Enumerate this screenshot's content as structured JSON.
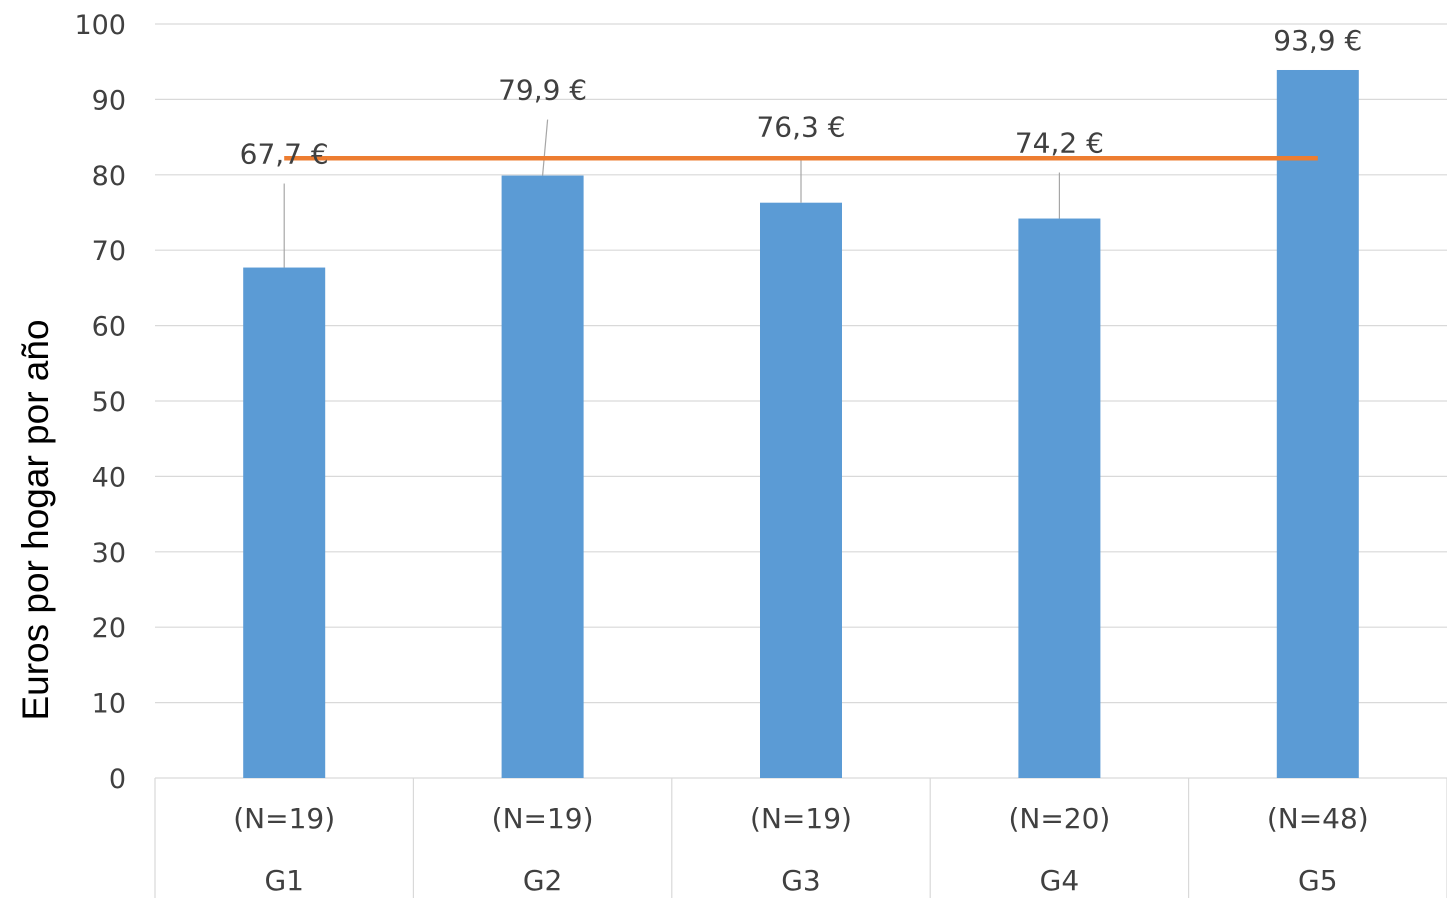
{
  "chart_data": {
    "type": "bar",
    "title": "",
    "xlabel": "",
    "ylabel": "Euros por hogar por año",
    "ylim": [
      0,
      100
    ],
    "yticks": [
      0,
      10,
      20,
      30,
      40,
      50,
      60,
      70,
      80,
      90,
      100
    ],
    "grid": true,
    "categories": [
      "G1",
      "G2",
      "G3",
      "G4",
      "G5"
    ],
    "subcategories": [
      "(N=19)",
      "(N=19)",
      "(N=19)",
      "(N=20)",
      "(N=48)"
    ],
    "values": [
      67.7,
      79.9,
      76.3,
      74.2,
      93.9
    ],
    "data_labels": [
      "67,7 €",
      "79,9 €",
      "76,3 €",
      "74,2 €",
      "93,9 €"
    ],
    "reference_line": {
      "value": 82.2,
      "color": "#ED7D31"
    },
    "colors": {
      "bar": "#5B9BD5",
      "grid": "#D9D9D9",
      "leader": "#A6A6A6"
    }
  }
}
